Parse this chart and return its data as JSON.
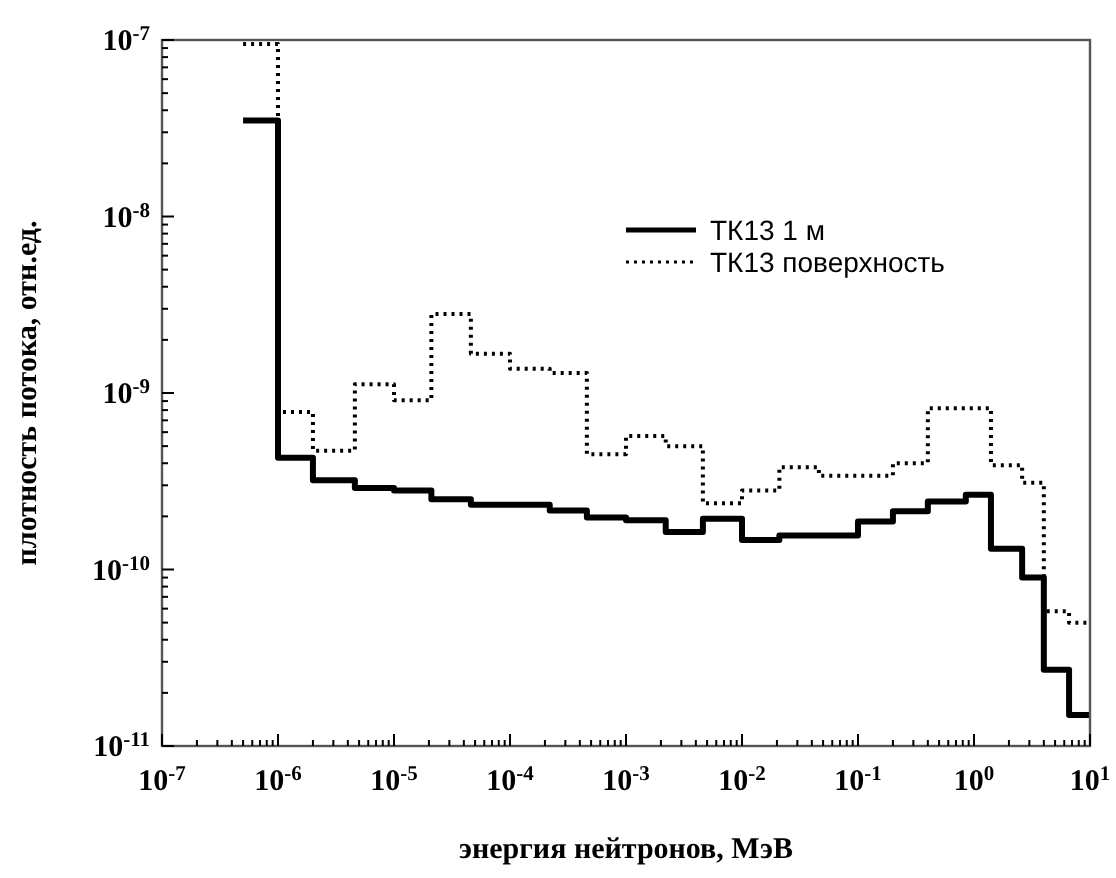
{
  "chart_data": {
    "type": "step",
    "xlabel": "энергия нейтронов, МэВ",
    "ylabel": "плотность потока, отн.ед.",
    "log": "xy",
    "grid": false,
    "legend": "top right",
    "xlim": [
      1e-07,
      10
    ],
    "ylim": [
      1e-11,
      1e-07
    ],
    "xticks": [
      {
        "value": 1e-07,
        "label": "10$^{-7}$"
      },
      {
        "value": 2e-07,
        "label": null
      },
      {
        "value": 3e-07,
        "label": null
      },
      {
        "value": 4e-07,
        "label": null
      },
      {
        "value": 5e-07,
        "label": null
      },
      {
        "value": 6e-07,
        "label": null
      },
      {
        "value": 7e-07,
        "label": null
      },
      {
        "value": 8e-07,
        "label": null
      },
      {
        "value": 9e-07,
        "label": null
      },
      {
        "value": 1e-06,
        "label": "10$^{-6}$"
      },
      {
        "value": 2e-06,
        "label": null
      },
      {
        "value": 3e-06,
        "label": null
      },
      {
        "value": 4e-06,
        "label": null
      },
      {
        "value": 5e-06,
        "label": null
      },
      {
        "value": 6e-06,
        "label": null
      },
      {
        "value": 7e-06,
        "label": null
      },
      {
        "value": 8e-06,
        "label": null
      },
      {
        "value": 9e-06,
        "label": null
      },
      {
        "value": 1e-05,
        "label": "10$^{-5}$"
      },
      {
        "value": 2e-05,
        "label": null
      },
      {
        "value": 3e-05,
        "label": null
      },
      {
        "value": 4e-05,
        "label": null
      },
      {
        "value": 5e-05,
        "label": null
      },
      {
        "value": 6e-05,
        "label": null
      },
      {
        "value": 7e-05,
        "label": null
      },
      {
        "value": 8e-05,
        "label": null
      },
      {
        "value": 9e-05,
        "label": null
      },
      {
        "value": 0.0001,
        "label": "10$^{-4}$"
      },
      {
        "value": 0.0002,
        "label": null
      },
      {
        "value": 0.0003,
        "label": null
      },
      {
        "value": 0.0004,
        "label": null
      },
      {
        "value": 0.0005,
        "label": null
      },
      {
        "value": 0.0006,
        "label": null
      },
      {
        "value": 0.0007,
        "label": null
      },
      {
        "value": 0.0008,
        "label": null
      },
      {
        "value": 0.0009,
        "label": null
      },
      {
        "value": 0.001,
        "label": "10$^{-3}$"
      },
      {
        "value": 0.002,
        "label": null
      },
      {
        "value": 0.003,
        "label": null
      },
      {
        "value": 0.004,
        "label": null
      },
      {
        "value": 0.005,
        "label": null
      },
      {
        "value": 0.006,
        "label": null
      },
      {
        "value": 0.007,
        "label": null
      },
      {
        "value": 0.008,
        "label": null
      },
      {
        "value": 0.009,
        "label": null
      },
      {
        "value": 0.01,
        "label": "10$^{-2}$"
      },
      {
        "value": 0.02,
        "label": null
      },
      {
        "value": 0.03,
        "label": null
      },
      {
        "value": 0.04,
        "label": null
      },
      {
        "value": 0.05,
        "label": null
      },
      {
        "value": 0.06,
        "label": null
      },
      {
        "value": 0.07,
        "label": null
      },
      {
        "value": 0.08,
        "label": null
      },
      {
        "value": 0.09,
        "label": null
      },
      {
        "value": 0.1,
        "label": "10$^{-1}$"
      },
      {
        "value": 0.2,
        "label": null
      },
      {
        "value": 0.3,
        "label": null
      },
      {
        "value": 0.4,
        "label": null
      },
      {
        "value": 0.5,
        "label": null
      },
      {
        "value": 0.6,
        "label": null
      },
      {
        "value": 0.7,
        "label": null
      },
      {
        "value": 0.8,
        "label": null
      },
      {
        "value": 0.9,
        "label": null
      },
      {
        "value": 1,
        "label": "10$^{0}$"
      },
      {
        "value": 2,
        "label": null
      },
      {
        "value": 3,
        "label": null
      },
      {
        "value": 4,
        "label": null
      },
      {
        "value": 5,
        "label": null
      },
      {
        "value": 6,
        "label": null
      },
      {
        "value": 7,
        "label": null
      },
      {
        "value": 8,
        "label": null
      },
      {
        "value": 9,
        "label": null
      },
      {
        "value": 10,
        "label": "10$^{1}$"
      }
    ],
    "yticks": [
      {
        "value": 1e-11,
        "label": "10$^{-11}$"
      },
      {
        "value": 2e-11,
        "label": null
      },
      {
        "value": 3e-11,
        "label": null
      },
      {
        "value": 4e-11,
        "label": null
      },
      {
        "value": 5e-11,
        "label": null
      },
      {
        "value": 6e-11,
        "label": null
      },
      {
        "value": 7e-11,
        "label": null
      },
      {
        "value": 8e-11,
        "label": null
      },
      {
        "value": 9e-11,
        "label": null
      },
      {
        "value": 1e-10,
        "label": "10$^{-10}$"
      },
      {
        "value": 2e-10,
        "label": null
      },
      {
        "value": 3e-10,
        "label": null
      },
      {
        "value": 4e-10,
        "label": null
      },
      {
        "value": 5e-10,
        "label": null
      },
      {
        "value": 6e-10,
        "label": null
      },
      {
        "value": 7e-10,
        "label": null
      },
      {
        "value": 8e-10,
        "label": null
      },
      {
        "value": 9e-10,
        "label": null
      },
      {
        "value": 1e-09,
        "label": "10$^{-9}$"
      },
      {
        "value": 2e-09,
        "label": null
      },
      {
        "value": 3e-09,
        "label": null
      },
      {
        "value": 4e-09,
        "label": null
      },
      {
        "value": 5e-09,
        "label": null
      },
      {
        "value": 6e-09,
        "label": null
      },
      {
        "value": 7e-09,
        "label": null
      },
      {
        "value": 8e-09,
        "label": null
      },
      {
        "value": 9e-09,
        "label": null
      },
      {
        "value": 1e-08,
        "label": "10$^{-8}$"
      },
      {
        "value": 2e-08,
        "label": null
      },
      {
        "value": 3e-08,
        "label": null
      },
      {
        "value": 4e-08,
        "label": null
      },
      {
        "value": 5e-08,
        "label": null
      },
      {
        "value": 6e-08,
        "label": null
      },
      {
        "value": 7e-08,
        "label": null
      },
      {
        "value": 8e-08,
        "label": null
      },
      {
        "value": 9e-08,
        "label": null
      },
      {
        "value": 1e-07,
        "label": "10$^{-7}$"
      }
    ],
    "series": [
      {
        "name": "ТК13  1 м",
        "color": "#000000",
        "line_style": "solid",
        "x": [
          5e-07,
          1e-06,
          2e-06,
          4.6e-06,
          1e-05,
          2.1e-05,
          4.6e-05,
          0.00022,
          0.00046,
          0.001,
          0.0022,
          0.0046,
          0.01,
          0.021,
          0.1,
          0.2,
          0.4,
          0.85,
          1.4,
          2.6,
          4,
          6.6,
          10
        ],
        "values": [
          3.5e-08,
          4.3e-10,
          3.2e-10,
          2.9e-10,
          2.8e-10,
          2.5e-10,
          2.33e-10,
          2.16e-10,
          1.97e-10,
          1.9e-10,
          1.63e-10,
          1.94e-10,
          1.47e-10,
          1.56e-10,
          1.87e-10,
          2.14e-10,
          2.43e-10,
          2.65e-10,
          1.31e-10,
          9e-11,
          2.7e-11,
          1.5e-11,
          1.5e-11
        ]
      },
      {
        "name": "ТК13 поверхность",
        "color": "#000000",
        "line_style": "dotted",
        "x": [
          5e-07,
          1e-06,
          2e-06,
          4.6e-06,
          1e-05,
          2.1e-05,
          4.6e-05,
          0.0001,
          0.00022,
          0.00046,
          0.001,
          0.0022,
          0.0046,
          0.01,
          0.021,
          0.046,
          0.2,
          0.4,
          1.4,
          2.6,
          4,
          6.6,
          10
        ],
        "values": [
          9.5e-08,
          7.8e-10,
          4.7e-10,
          1.12e-09,
          9.1e-10,
          2.8e-09,
          1.67e-09,
          1.37e-09,
          1.3e-09,
          4.5e-10,
          5.7e-10,
          5e-10,
          2.37e-10,
          2.8e-10,
          3.8e-10,
          3.4e-10,
          4e-10,
          8.2e-10,
          3.9e-10,
          3.1e-10,
          5.8e-11,
          5e-11,
          5e-11
        ]
      }
    ]
  }
}
